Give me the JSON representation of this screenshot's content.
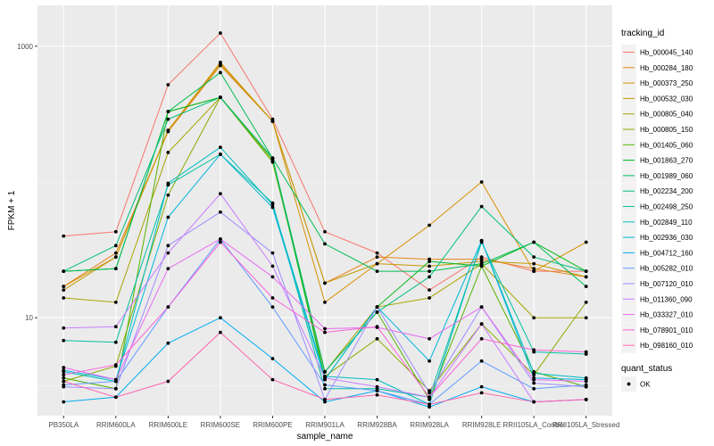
{
  "chart_data": {
    "type": "line",
    "xlabel": "sample_name",
    "ylabel": "FPKM + 1",
    "y_scale": "log10",
    "ylim": [
      1.9,
      2000
    ],
    "y_ticks": [
      10,
      1000
    ],
    "y_tick_labels": [
      "10",
      "1000"
    ],
    "grid": true,
    "legend_position": "right",
    "categories": [
      "PB350LA",
      "RRIM600LA",
      "RRIM600LE",
      "RRIM600SE",
      "RRIM600PE",
      "RRIM901LA",
      "RRIM928BA",
      "RRIM928LA",
      "RRIM928LE",
      "RRII105LA_Control",
      "RRII105LA_Stressed"
    ],
    "legend_title": "tracking_id",
    "series": [
      {
        "name": "Hb_000045_140",
        "color": "#F8766D",
        "values": [
          40,
          43,
          520,
          1250,
          290,
          43,
          30,
          16,
          28,
          22,
          22
        ]
      },
      {
        "name": "Hb_000284_180",
        "color": "#E7851E",
        "values": [
          17,
          30,
          235,
          720,
          280,
          18,
          28,
          27,
          27,
          23,
          20
        ]
      },
      {
        "name": "Hb_000373_250",
        "color": "#D89000",
        "values": [
          17,
          28,
          240,
          760,
          280,
          13,
          25,
          48,
          100,
          22,
          36
        ]
      },
      {
        "name": "Hb_000532_030",
        "color": "#C49A00",
        "values": [
          16,
          28,
          240,
          740,
          280,
          18,
          25,
          24,
          26,
          25,
          20
        ]
      },
      {
        "name": "Hb_000805_040",
        "color": "#A9A400",
        "values": [
          14,
          13,
          165,
          420,
          150,
          4.0,
          12,
          14,
          25,
          10,
          10
        ]
      },
      {
        "name": "Hb_000805_150",
        "color": "#86AC00",
        "values": [
          3.4,
          4.4,
          80,
          420,
          145,
          3.7,
          7.0,
          2.9,
          9.0,
          3.8,
          13
        ]
      },
      {
        "name": "Hb_001405_060",
        "color": "#55B300",
        "values": [
          3.6,
          3.0,
          330,
          420,
          140,
          4.0,
          11,
          2.5,
          24,
          4.0,
          3.1
        ]
      },
      {
        "name": "Hb_001863_270",
        "color": "#00B815",
        "values": [
          22,
          23,
          330,
          420,
          150,
          3.5,
          12,
          26,
          24,
          36,
          22
        ]
      },
      {
        "name": "Hb_001989_060",
        "color": "#00BC56",
        "values": [
          22,
          23,
          330,
          640,
          150,
          35,
          22,
          22,
          25,
          36,
          17
        ]
      },
      {
        "name": "Hb_002234_200",
        "color": "#00BF7D",
        "values": [
          22,
          34,
          290,
          420,
          150,
          4.0,
          11,
          20,
          66,
          28,
          22
        ]
      },
      {
        "name": "Hb_002498_250",
        "color": "#00C0A0",
        "values": [
          6.8,
          6.6,
          95,
          160,
          70,
          3.0,
          3.0,
          2.6,
          36,
          5.6,
          5.4
        ]
      },
      {
        "name": "Hb_002849_110",
        "color": "#00BDC0",
        "values": [
          4.0,
          3.4,
          98,
          180,
          68,
          3.7,
          3.5,
          2.3,
          37,
          3.9,
          3.6
        ]
      },
      {
        "name": "Hb_002936_030",
        "color": "#00B7DB",
        "values": [
          4.1,
          3.5,
          55,
          160,
          65,
          3.5,
          12,
          4.8,
          37,
          3.6,
          3.5
        ]
      },
      {
        "name": "Hb_004712_160",
        "color": "#00ACF2",
        "values": [
          2.4,
          2.6,
          6.5,
          10,
          5.0,
          2.4,
          2.9,
          2.2,
          3.1,
          2.4,
          2.5
        ]
      },
      {
        "name": "Hb_005282_010",
        "color": "#619CFF",
        "values": [
          3.2,
          3.4,
          12,
          38,
          12,
          3.2,
          2.9,
          2.3,
          4.8,
          3.0,
          3.2
        ]
      },
      {
        "name": "Hb_007120_010",
        "color": "#9F8CFF",
        "values": [
          3.1,
          3.0,
          34,
          60,
          30,
          2.5,
          12,
          2.8,
          12,
          3.3,
          3.1
        ]
      },
      {
        "name": "Hb_011360_090",
        "color": "#CA7BFF",
        "values": [
          8.4,
          8.6,
          30,
          82,
          24,
          3.6,
          3.1,
          2.6,
          9.0,
          2.4,
          2.5
        ]
      },
      {
        "name": "Hb_033327_010",
        "color": "#E76BF3",
        "values": [
          4.3,
          3.5,
          23,
          38,
          20,
          8.3,
          8.5,
          7.0,
          12,
          3.5,
          3.4
        ]
      },
      {
        "name": "Hb_078901_010",
        "color": "#FB61D7",
        "values": [
          3.8,
          4.5,
          12,
          36,
          14,
          7.8,
          8.6,
          2.6,
          7.0,
          5.8,
          5.6
        ]
      },
      {
        "name": "Hb_098160_010",
        "color": "#FF64B0",
        "values": [
          3.4,
          2.6,
          3.4,
          7.8,
          3.5,
          2.5,
          2.7,
          2.3,
          2.8,
          2.4,
          2.5
        ]
      }
    ],
    "legend2_title": "quant_status",
    "legend2_items": [
      "OK"
    ]
  }
}
